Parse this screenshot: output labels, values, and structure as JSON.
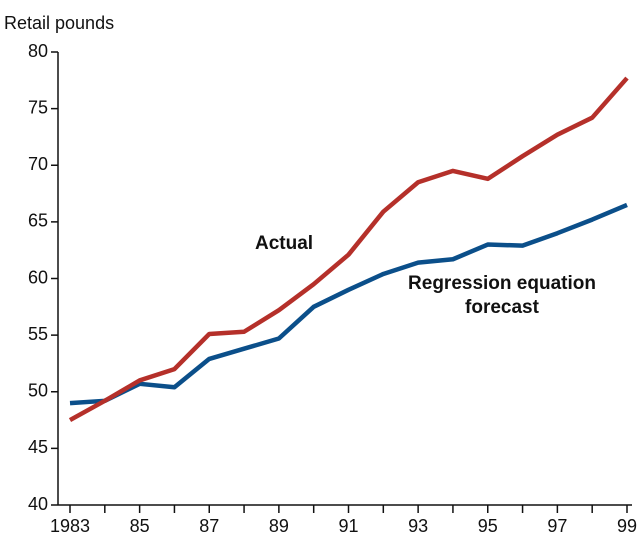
{
  "chart_data": {
    "type": "line",
    "y_axis_label": "Retail pounds",
    "x": [
      1983,
      1984,
      1985,
      1986,
      1987,
      1988,
      1989,
      1990,
      1991,
      1992,
      1993,
      1994,
      1995,
      1996,
      1997,
      1998,
      1999
    ],
    "series": [
      {
        "name": "Actual",
        "color": "#b5302a",
        "values": [
          47.5,
          49.2,
          51.0,
          52.0,
          55.1,
          55.3,
          57.2,
          59.5,
          62.1,
          65.9,
          68.5,
          69.5,
          68.8,
          70.8,
          72.7,
          74.2,
          77.7
        ]
      },
      {
        "name": "Regression equation forecast",
        "color": "#0b4f8a",
        "values": [
          49.0,
          49.2,
          50.7,
          50.4,
          52.9,
          53.8,
          54.7,
          57.5,
          59.0,
          60.4,
          61.4,
          61.7,
          63.0,
          62.9,
          64.0,
          65.2,
          66.5
        ]
      }
    ],
    "xlim": [
      1983,
      1999
    ],
    "xticks": [
      1983,
      {
        "value": 1985,
        "label": "85"
      },
      {
        "value": 1987,
        "label": "87"
      },
      {
        "value": 1989,
        "label": "89"
      },
      {
        "value": 1991,
        "label": "91"
      },
      {
        "value": 1993,
        "label": "93"
      },
      {
        "value": 1995,
        "label": "95"
      },
      {
        "value": 1997,
        "label": "97"
      },
      {
        "value": 1999,
        "label": "99"
      }
    ],
    "xminorticks": [
      1984,
      1986,
      1988,
      1990,
      1992,
      1994,
      1996,
      1998
    ],
    "ylim": [
      40,
      80
    ],
    "yticks": [
      40,
      45,
      50,
      55,
      60,
      65,
      70,
      75,
      80
    ],
    "grid": false
  }
}
